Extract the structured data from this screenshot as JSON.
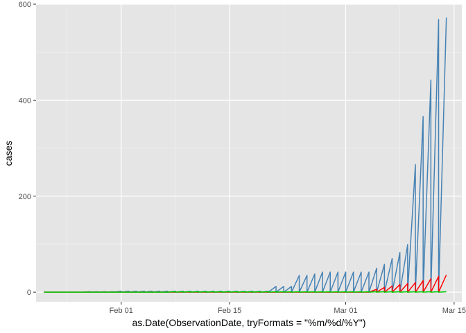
{
  "chart_data": {
    "type": "line",
    "xlabel": "as.Date(ObservationDate, tryFormats = \"%m/%d/%Y\")",
    "ylabel": "cases",
    "x_ticks": [
      "Feb 01",
      "Feb 15",
      "Mar 01",
      "Mar 15"
    ],
    "y_ticks": [
      0,
      200,
      400,
      600
    ],
    "xlim": [
      "2020-01-21",
      "2020-03-16"
    ],
    "ylim": [
      -20,
      600
    ],
    "grid": true,
    "legend": "none",
    "panel_background": "#e5e5e5",
    "dates": [
      "2020-01-22",
      "2020-01-23",
      "2020-01-24",
      "2020-01-25",
      "2020-01-26",
      "2020-01-27",
      "2020-01-28",
      "2020-01-29",
      "2020-01-30",
      "2020-01-31",
      "2020-02-01",
      "2020-02-02",
      "2020-02-03",
      "2020-02-04",
      "2020-02-05",
      "2020-02-06",
      "2020-02-07",
      "2020-02-08",
      "2020-02-09",
      "2020-02-10",
      "2020-02-11",
      "2020-02-12",
      "2020-02-13",
      "2020-02-14",
      "2020-02-15",
      "2020-02-16",
      "2020-02-17",
      "2020-02-18",
      "2020-02-19",
      "2020-02-20",
      "2020-02-21",
      "2020-02-22",
      "2020-02-23",
      "2020-02-24",
      "2020-02-25",
      "2020-02-26",
      "2020-02-27",
      "2020-02-28",
      "2020-02-29",
      "2020-03-01",
      "2020-03-02",
      "2020-03-03",
      "2020-03-04",
      "2020-03-05",
      "2020-03-06",
      "2020-03-07",
      "2020-03-08",
      "2020-03-09",
      "2020-03-10",
      "2020-03-11",
      "2020-03-12",
      "2020-03-13",
      "2020-03-14"
    ],
    "series": [
      {
        "color": "#4682b4",
        "values": [
          0,
          0,
          0,
          0,
          0,
          0,
          1,
          1,
          1,
          1,
          2,
          2,
          2,
          2,
          2,
          2,
          2,
          2,
          2,
          2,
          2,
          2,
          2,
          2,
          2,
          2,
          2,
          2,
          2,
          2,
          12,
          12,
          12,
          35,
          35,
          38,
          42,
          42,
          42,
          42,
          42,
          42,
          42,
          50,
          58,
          70,
          83,
          99,
          266,
          366,
          442,
          568,
          572
        ]
      },
      {
        "color": "#ff0000",
        "values": [
          0,
          0,
          0,
          0,
          0,
          0,
          0,
          0,
          0,
          0,
          0,
          0,
          0,
          0,
          0,
          0,
          0,
          0,
          0,
          0,
          0,
          0,
          0,
          0,
          0,
          0,
          0,
          0,
          0,
          0,
          0,
          0,
          0,
          0,
          0,
          0,
          0,
          0,
          0,
          0,
          0,
          0,
          0,
          6,
          10,
          13,
          16,
          18,
          20,
          24,
          28,
          33,
          36
        ]
      },
      {
        "color": "#00cc00",
        "values": [
          0,
          0,
          0,
          0,
          0,
          0,
          0,
          0,
          0,
          0,
          0,
          0,
          0,
          0,
          0,
          0,
          0,
          1,
          1,
          1,
          1,
          1,
          1,
          1,
          1,
          1,
          1,
          1,
          1,
          1,
          1,
          1,
          1,
          1,
          1,
          1,
          1,
          1,
          1,
          1,
          1,
          1,
          1,
          1,
          1,
          1,
          1,
          1,
          1,
          1,
          1,
          1,
          1
        ]
      }
    ]
  }
}
